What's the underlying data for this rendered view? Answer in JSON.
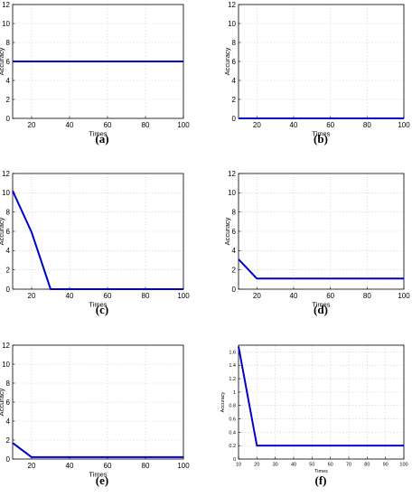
{
  "chart_data": [
    {
      "type": "line",
      "panel_label": "(a)",
      "xlabel": "Times",
      "ylabel": "Accuracy",
      "xlim": [
        10,
        100
      ],
      "ylim": [
        0,
        12
      ],
      "xticks": [
        "20",
        "40",
        "60",
        "80",
        "100"
      ],
      "yticks": [
        "0",
        "2",
        "4",
        "6",
        "8",
        "10",
        "12"
      ],
      "grid": true,
      "series": [
        {
          "x": [
            10,
            20,
            30,
            40,
            50,
            60,
            70,
            80,
            90,
            100
          ],
          "y": [
            6,
            6,
            6,
            6,
            6,
            6,
            6,
            6,
            6,
            6
          ]
        }
      ]
    },
    {
      "type": "line",
      "panel_label": "(b)",
      "xlabel": "Times",
      "ylabel": "Accuracy",
      "xlim": [
        10,
        100
      ],
      "ylim": [
        0,
        12
      ],
      "xticks": [
        "20",
        "40",
        "60",
        "80",
        "100"
      ],
      "yticks": [
        "0",
        "2",
        "4",
        "6",
        "8",
        "10",
        "12"
      ],
      "grid": true,
      "series": [
        {
          "x": [
            10,
            20,
            30,
            40,
            50,
            60,
            70,
            80,
            90,
            100
          ],
          "y": [
            0,
            0,
            0,
            0,
            0,
            0,
            0,
            0,
            0,
            0
          ]
        }
      ]
    },
    {
      "type": "line",
      "panel_label": "(c)",
      "xlabel": "Times",
      "ylabel": "Accuracy",
      "xlim": [
        10,
        100
      ],
      "ylim": [
        0,
        12
      ],
      "xticks": [
        "20",
        "40",
        "60",
        "80",
        "100"
      ],
      "yticks": [
        "0",
        "2",
        "4",
        "6",
        "8",
        "10",
        "12"
      ],
      "grid": true,
      "series": [
        {
          "x": [
            10,
            20,
            30,
            40,
            50,
            60,
            70,
            80,
            90,
            100
          ],
          "y": [
            10.2,
            5.9,
            0,
            0,
            0,
            0,
            0,
            0,
            0,
            0
          ]
        }
      ]
    },
    {
      "type": "line",
      "panel_label": "(d)",
      "xlabel": "Times",
      "ylabel": "Accuracy",
      "xlim": [
        10,
        100
      ],
      "ylim": [
        0,
        12
      ],
      "xticks": [
        "20",
        "40",
        "60",
        "80",
        "100"
      ],
      "yticks": [
        "0",
        "2",
        "4",
        "6",
        "8",
        "10",
        "12"
      ],
      "grid": true,
      "series": [
        {
          "x": [
            10,
            20,
            30,
            40,
            50,
            60,
            70,
            80,
            90,
            100
          ],
          "y": [
            3.1,
            1.1,
            1.1,
            1.1,
            1.1,
            1.1,
            1.1,
            1.1,
            1.1,
            1.1
          ]
        }
      ]
    },
    {
      "type": "line",
      "panel_label": "(e)",
      "xlabel": "Times",
      "ylabel": "Accuracy",
      "xlim": [
        10,
        100
      ],
      "ylim": [
        0,
        12
      ],
      "xticks": [
        "20",
        "40",
        "60",
        "80",
        "100"
      ],
      "yticks": [
        "0",
        "2",
        "4",
        "6",
        "8",
        "10",
        "12"
      ],
      "grid": true,
      "series": [
        {
          "x": [
            10,
            20,
            30,
            40,
            50,
            60,
            70,
            80,
            90,
            100
          ],
          "y": [
            1.7,
            0.2,
            0.2,
            0.2,
            0.2,
            0.2,
            0.2,
            0.2,
            0.2,
            0.2
          ]
        }
      ]
    },
    {
      "type": "line",
      "panel_label": "(f)",
      "xlabel": "Times",
      "ylabel": "Accuracy",
      "xlim": [
        10,
        100
      ],
      "ylim": [
        0,
        1.7
      ],
      "xticks": [
        "10",
        "20",
        "30",
        "40",
        "50",
        "60",
        "70",
        "80",
        "90",
        "100"
      ],
      "yticks": [
        "0",
        "0.2",
        "0.4",
        "0.6",
        "0.8",
        "1",
        "1.2",
        "1.4",
        "1.6"
      ],
      "grid": true,
      "series": [
        {
          "x": [
            10,
            20,
            30,
            40,
            50,
            60,
            70,
            80,
            90,
            100
          ],
          "y": [
            1.68,
            0.2,
            0.2,
            0.2,
            0.2,
            0.2,
            0.2,
            0.2,
            0.2,
            0.2
          ]
        }
      ]
    }
  ],
  "colors": {
    "line": "#0000cc",
    "grid": "#d0d0d0",
    "axis": "#000000"
  }
}
